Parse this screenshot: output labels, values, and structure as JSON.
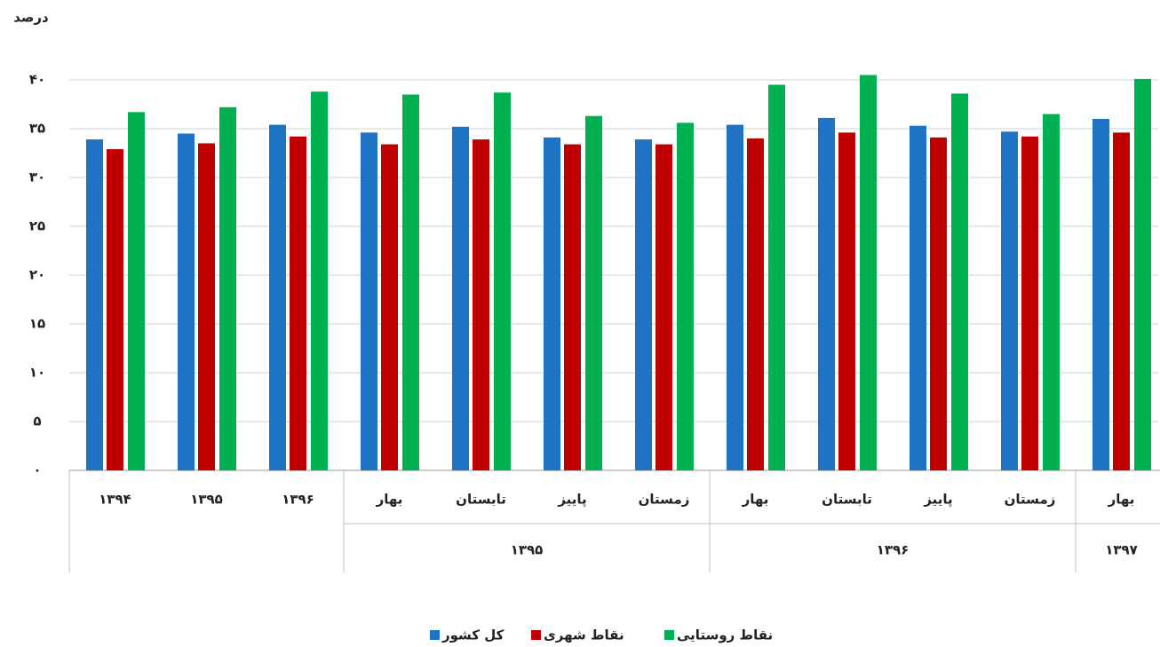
{
  "chart_data": {
    "type": "bar",
    "title": "درصد",
    "categories": [
      "۱۳۹۴",
      "۱۳۹۵",
      "۱۳۹۶",
      "بهار",
      "تابستان",
      "پاییز",
      "زمستان",
      "بهار",
      "تابستان",
      "پاییز",
      "زمستان",
      "بهار"
    ],
    "category_groups": [
      null,
      null,
      null,
      "۱۳۹۵",
      "۱۳۹۵",
      "۱۳۹۵",
      "۱۳۹۵",
      "۱۳۹۶",
      "۱۳۹۶",
      "۱۳۹۶",
      "۱۳۹۶",
      "۱۳۹۷"
    ],
    "series": [
      {
        "name": "کل کشور",
        "color": "#1f73c4",
        "values": [
          33.9,
          34.5,
          35.4,
          34.6,
          35.2,
          34.1,
          33.9,
          35.4,
          36.1,
          35.3,
          34.7,
          36.0
        ]
      },
      {
        "name": "نقاط شهری",
        "color": "#c00000",
        "values": [
          32.9,
          33.5,
          34.2,
          33.4,
          33.9,
          33.4,
          33.4,
          34.0,
          34.6,
          34.1,
          34.2,
          34.6
        ]
      },
      {
        "name": "نقاط روستایی",
        "color": "#00b050",
        "values": [
          36.7,
          37.2,
          38.8,
          38.5,
          38.7,
          36.3,
          35.6,
          39.5,
          40.5,
          38.6,
          36.5,
          40.1
        ]
      }
    ],
    "ylim": [
      0,
      42
    ],
    "yticks": [
      {
        "value": 0,
        "label": "۰"
      },
      {
        "value": 5,
        "label": "۵"
      },
      {
        "value": 10,
        "label": "۱۰"
      },
      {
        "value": 15,
        "label": "۱۵"
      },
      {
        "value": 20,
        "label": "۲۰"
      },
      {
        "value": 25,
        "label": "۲۵"
      },
      {
        "value": 30,
        "label": "۳۰"
      },
      {
        "value": 35,
        "label": "۳۵"
      },
      {
        "value": 40,
        "label": "۴۰"
      }
    ],
    "grid": true,
    "legend": "bottom"
  }
}
